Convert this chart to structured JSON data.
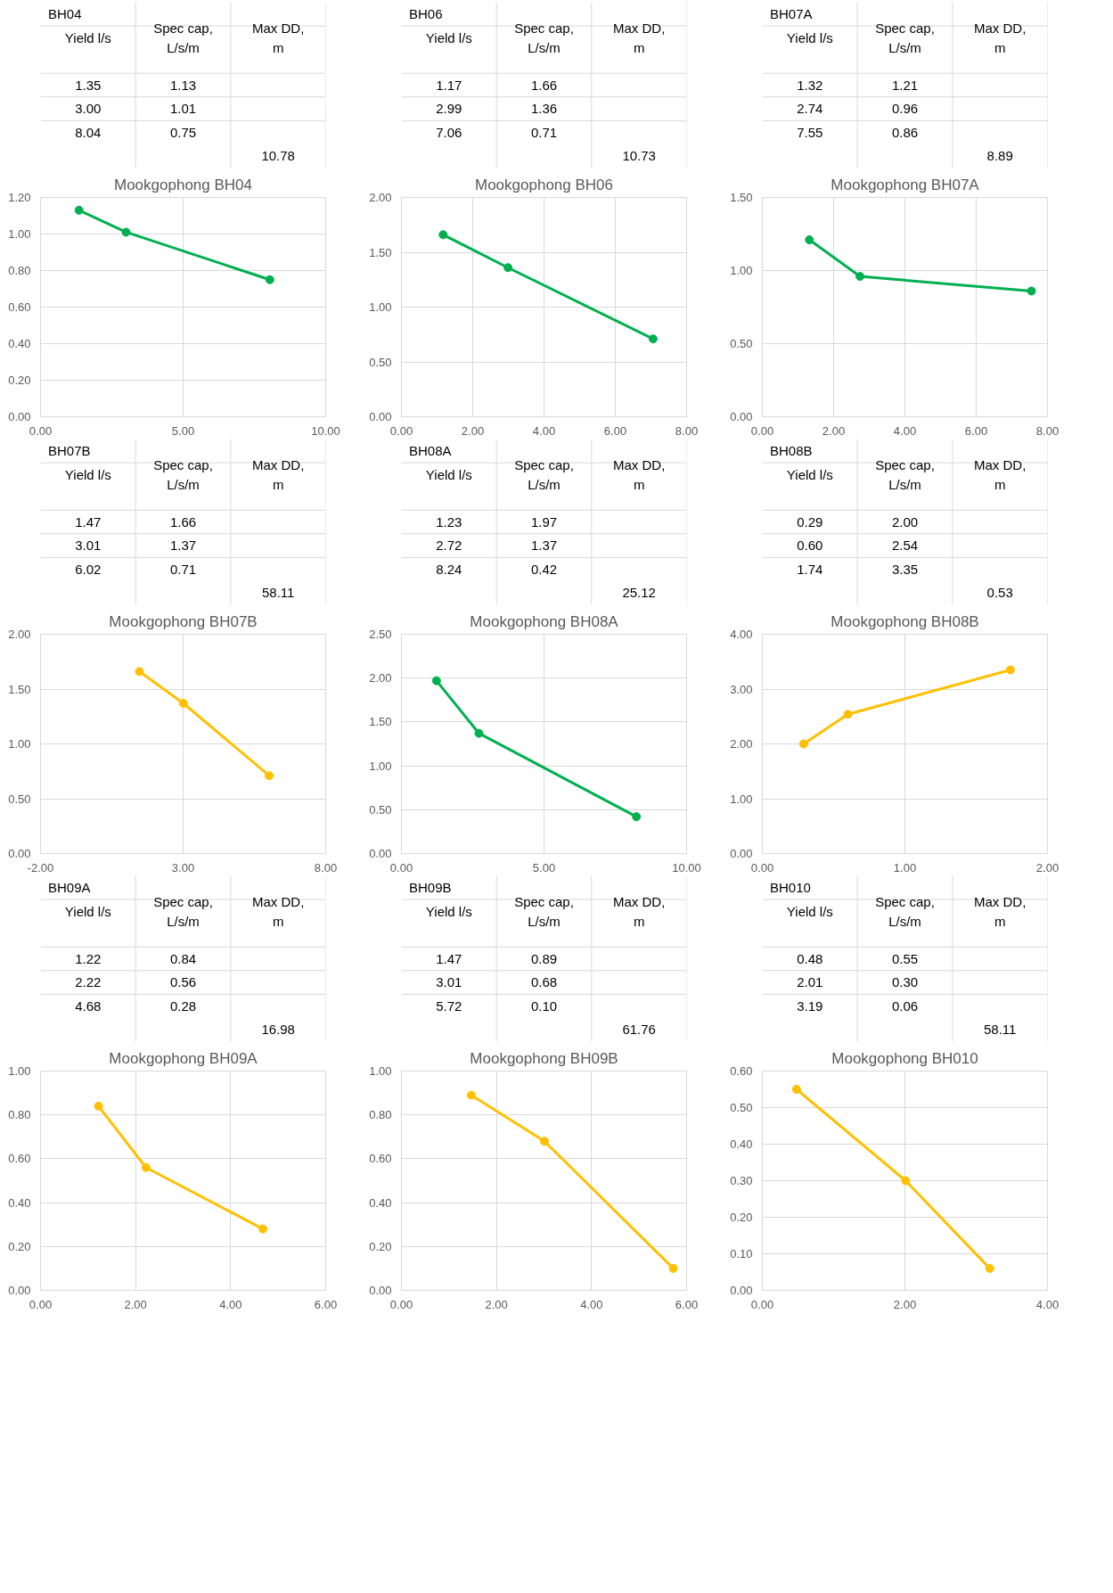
{
  "chart_data": [
    {
      "type": "line",
      "title": "Mookgophong BH04",
      "x": [
        1.35,
        3.0,
        8.04
      ],
      "series": [
        {
          "color": "#00b050",
          "values": [
            1.13,
            1.01,
            0.75
          ]
        }
      ],
      "xlim": [
        0,
        10
      ],
      "xticks": [
        {
          "value": 0,
          "label": "0.00"
        },
        {
          "value": 5,
          "label": "5.00"
        },
        {
          "value": 10,
          "label": "10.00"
        }
      ],
      "ylim": [
        0,
        1.2
      ],
      "yticks": [
        {
          "value": 0,
          "label": "0.00"
        },
        {
          "value": 0.2,
          "label": "0.20"
        },
        {
          "value": 0.4,
          "label": "0.40"
        },
        {
          "value": 0.6,
          "label": "0.60"
        },
        {
          "value": 0.8,
          "label": "0.80"
        },
        {
          "value": 1.0,
          "label": "1.00"
        },
        {
          "value": 1.2,
          "label": "1.20"
        }
      ],
      "grid": true,
      "marker": "circle",
      "annotations": [
        "BH04",
        "Yield l/s",
        "Spec cap, L/s/m",
        "Max DD, m",
        "1.35",
        "1.13",
        "3.00",
        "1.01",
        "8.04",
        "0.75",
        "10.78"
      ]
    },
    {
      "type": "line",
      "title": "Mookgophong BH06",
      "x": [
        1.17,
        2.99,
        7.06
      ],
      "series": [
        {
          "color": "#00b050",
          "values": [
            1.66,
            1.36,
            0.71
          ]
        }
      ],
      "xlim": [
        0,
        8
      ],
      "xticks": [
        {
          "value": 0,
          "label": "0.00"
        },
        {
          "value": 2,
          "label": "2.00"
        },
        {
          "value": 4,
          "label": "4.00"
        },
        {
          "value": 6,
          "label": "6.00"
        },
        {
          "value": 8,
          "label": "8.00"
        }
      ],
      "ylim": [
        0,
        2
      ],
      "yticks": [
        {
          "value": 0,
          "label": "0.00"
        },
        {
          "value": 0.5,
          "label": "0.50"
        },
        {
          "value": 1.0,
          "label": "1.00"
        },
        {
          "value": 1.5,
          "label": "1.50"
        },
        {
          "value": 2.0,
          "label": "2.00"
        }
      ],
      "grid": true,
      "marker": "circle",
      "annotations": [
        "BH06",
        "Yield l/s",
        "Spec cap, L/s/m",
        "Max DD, m",
        "1.17",
        "1.66",
        "2.99",
        "1.36",
        "7.06",
        "0.71",
        "10.73"
      ]
    },
    {
      "type": "line",
      "title": "Mookgophong BH07A",
      "x": [
        1.32,
        2.74,
        7.55
      ],
      "series": [
        {
          "color": "#00b050",
          "values": [
            1.21,
            0.96,
            0.86
          ]
        }
      ],
      "xlim": [
        0,
        8
      ],
      "xticks": [
        {
          "value": 0,
          "label": "0.00"
        },
        {
          "value": 2,
          "label": "2.00"
        },
        {
          "value": 4,
          "label": "4.00"
        },
        {
          "value": 6,
          "label": "6.00"
        },
        {
          "value": 8,
          "label": "8.00"
        }
      ],
      "ylim": [
        0,
        1.5
      ],
      "yticks": [
        {
          "value": 0,
          "label": "0.00"
        },
        {
          "value": 0.5,
          "label": "0.50"
        },
        {
          "value": 1.0,
          "label": "1.00"
        },
        {
          "value": 1.5,
          "label": "1.50"
        }
      ],
      "grid": true,
      "marker": "circle",
      "annotations": [
        "BH07A",
        "Yield l/s",
        "Spec cap, L/s/m",
        "Max DD, m",
        "1.32",
        "1.21",
        "2.74",
        "0.96",
        "7.55",
        "0.86",
        "8.89"
      ]
    },
    {
      "type": "line",
      "title": "Mookgophong BH07B",
      "x": [
        1.47,
        3.01,
        6.02
      ],
      "series": [
        {
          "color": "#ffc000",
          "values": [
            1.66,
            1.37,
            0.71
          ]
        }
      ],
      "xlim": [
        -2,
        8
      ],
      "xticks": [
        {
          "value": -2,
          "label": "-2.00"
        },
        {
          "value": 3,
          "label": "3.00"
        },
        {
          "value": 8,
          "label": "8.00"
        }
      ],
      "ylim": [
        0,
        2
      ],
      "yticks": [
        {
          "value": 0,
          "label": "0.00"
        },
        {
          "value": 0.5,
          "label": "0.50"
        },
        {
          "value": 1.0,
          "label": "1.00"
        },
        {
          "value": 1.5,
          "label": "1.50"
        },
        {
          "value": 2.0,
          "label": "2.00"
        }
      ],
      "grid": true,
      "marker": "circle",
      "annotations": [
        "BH07B",
        "Yield l/s",
        "Spec cap, L/s/m",
        "Max DD, m",
        "1.47",
        "1.66",
        "3.01",
        "1.37",
        "6.02",
        "0.71",
        "58.11"
      ]
    },
    {
      "type": "line",
      "title": "Mookgophong BH08A",
      "x": [
        1.23,
        2.72,
        8.24
      ],
      "series": [
        {
          "color": "#00b050",
          "values": [
            1.97,
            1.37,
            0.42
          ]
        }
      ],
      "xlim": [
        0,
        10
      ],
      "xticks": [
        {
          "value": 0,
          "label": "0.00"
        },
        {
          "value": 5,
          "label": "5.00"
        },
        {
          "value": 10,
          "label": "10.00"
        }
      ],
      "ylim": [
        0,
        2.5
      ],
      "yticks": [
        {
          "value": 0,
          "label": "0.00"
        },
        {
          "value": 0.5,
          "label": "0.50"
        },
        {
          "value": 1.0,
          "label": "1.00"
        },
        {
          "value": 1.5,
          "label": "1.50"
        },
        {
          "value": 2.0,
          "label": "2.00"
        },
        {
          "value": 2.5,
          "label": "2.50"
        }
      ],
      "grid": true,
      "marker": "circle",
      "annotations": [
        "BH08A",
        "Yield l/s",
        "Spec cap, L/s/m",
        "Max DD, m",
        "1.23",
        "1.97",
        "2.72",
        "1.37",
        "8.24",
        "0.42",
        "25.12"
      ]
    },
    {
      "type": "line",
      "title": "Mookgophong BH08B",
      "x": [
        0.29,
        0.6,
        1.74
      ],
      "series": [
        {
          "color": "#ffc000",
          "values": [
            2.0,
            2.54,
            3.35
          ]
        }
      ],
      "xlim": [
        0,
        2
      ],
      "xticks": [
        {
          "value": 0,
          "label": "0.00"
        },
        {
          "value": 1,
          "label": "1.00"
        },
        {
          "value": 2,
          "label": "2.00"
        }
      ],
      "ylim": [
        0,
        4
      ],
      "yticks": [
        {
          "value": 0,
          "label": "0.00"
        },
        {
          "value": 1,
          "label": "1.00"
        },
        {
          "value": 2,
          "label": "2.00"
        },
        {
          "value": 3,
          "label": "3.00"
        },
        {
          "value": 4,
          "label": "4.00"
        }
      ],
      "grid": true,
      "marker": "circle",
      "annotations": [
        "BH08B",
        "Yield l/s",
        "Spec cap, L/s/m",
        "Max DD, m",
        "0.29",
        "2.00",
        "0.60",
        "2.54",
        "1.74",
        "3.35",
        "0.53"
      ]
    },
    {
      "type": "line",
      "title": "Mookgophong BH09A",
      "x": [
        1.22,
        2.22,
        4.68
      ],
      "series": [
        {
          "color": "#ffc000",
          "values": [
            0.84,
            0.56,
            0.28
          ]
        }
      ],
      "xlim": [
        0,
        6
      ],
      "xticks": [
        {
          "value": 0,
          "label": "0.00"
        },
        {
          "value": 2,
          "label": "2.00"
        },
        {
          "value": 4,
          "label": "4.00"
        },
        {
          "value": 6,
          "label": "6.00"
        }
      ],
      "ylim": [
        0,
        1
      ],
      "yticks": [
        {
          "value": 0,
          "label": "0.00"
        },
        {
          "value": 0.2,
          "label": "0.20"
        },
        {
          "value": 0.4,
          "label": "0.40"
        },
        {
          "value": 0.6,
          "label": "0.60"
        },
        {
          "value": 0.8,
          "label": "0.80"
        },
        {
          "value": 1.0,
          "label": "1.00"
        }
      ],
      "grid": true,
      "marker": "circle",
      "annotations": [
        "BH09A",
        "Yield l/s",
        "Spec cap, L/s/m",
        "Max DD, m",
        "1.22",
        "0.84",
        "2.22",
        "0.56",
        "4.68",
        "0.28",
        "16.98"
      ]
    },
    {
      "type": "line",
      "title": "Mookgophong BH09B",
      "x": [
        1.47,
        3.01,
        5.72
      ],
      "series": [
        {
          "color": "#ffc000",
          "values": [
            0.89,
            0.68,
            0.1
          ]
        }
      ],
      "xlim": [
        0,
        6
      ],
      "xticks": [
        {
          "value": 0,
          "label": "0.00"
        },
        {
          "value": 2,
          "label": "2.00"
        },
        {
          "value": 4,
          "label": "4.00"
        },
        {
          "value": 6,
          "label": "6.00"
        }
      ],
      "ylim": [
        0,
        1
      ],
      "yticks": [
        {
          "value": 0,
          "label": "0.00"
        },
        {
          "value": 0.2,
          "label": "0.20"
        },
        {
          "value": 0.4,
          "label": "0.40"
        },
        {
          "value": 0.6,
          "label": "0.60"
        },
        {
          "value": 0.8,
          "label": "0.80"
        },
        {
          "value": 1.0,
          "label": "1.00"
        }
      ],
      "grid": true,
      "marker": "circle",
      "annotations": [
        "BH09B",
        "Yield l/s",
        "Spec cap, L/s/m",
        "Max DD, m",
        "1.47",
        "0.89",
        "3.01",
        "0.68",
        "5.72",
        "0.10",
        "61.76"
      ]
    },
    {
      "type": "line",
      "title": "Mookgophong BH010",
      "x": [
        0.48,
        2.01,
        3.19
      ],
      "series": [
        {
          "color": "#ffc000",
          "values": [
            0.55,
            0.3,
            0.06
          ]
        }
      ],
      "xlim": [
        0,
        4
      ],
      "xticks": [
        {
          "value": 0,
          "label": "0.00"
        },
        {
          "value": 2,
          "label": "2.00"
        },
        {
          "value": 4,
          "label": "4.00"
        }
      ],
      "ylim": [
        0,
        0.6
      ],
      "yticks": [
        {
          "value": 0,
          "label": "0.00"
        },
        {
          "value": 0.1,
          "label": "0.10"
        },
        {
          "value": 0.2,
          "label": "0.20"
        },
        {
          "value": 0.3,
          "label": "0.30"
        },
        {
          "value": 0.4,
          "label": "0.40"
        },
        {
          "value": 0.5,
          "label": "0.50"
        },
        {
          "value": 0.6,
          "label": "0.60"
        }
      ],
      "grid": true,
      "marker": "circle",
      "annotations": [
        "BH010",
        "Yield l/s",
        "Spec cap, L/s/m",
        "Max DD, m",
        "0.48",
        "0.55",
        "2.01",
        "0.30",
        "3.19",
        "0.06",
        "58.11"
      ]
    }
  ]
}
